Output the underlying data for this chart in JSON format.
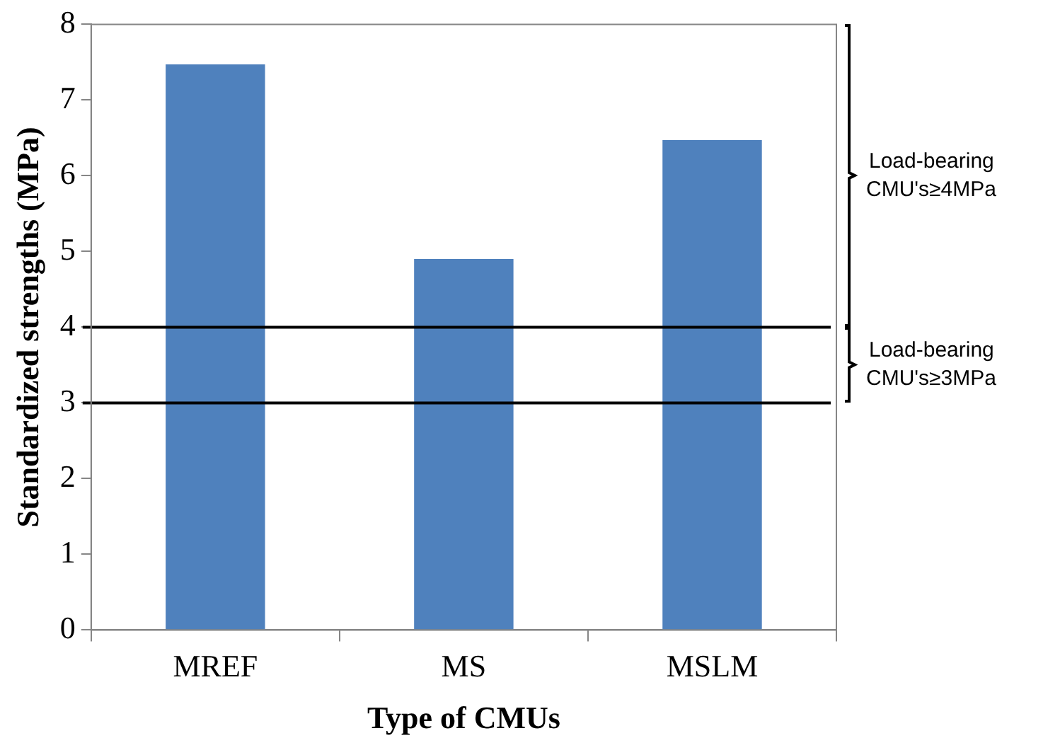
{
  "chart_data": {
    "type": "bar",
    "xlabel": "Type of CMUs",
    "ylabel": "Standardized strengths (MPa)",
    "categories": [
      "MREF",
      "MS",
      "MSLM"
    ],
    "values": [
      7.47,
      4.9,
      6.47
    ],
    "color": "#4f81bd",
    "ylim": [
      0,
      8
    ],
    "yticks": [
      0,
      1,
      2,
      3,
      4,
      5,
      6,
      7,
      8
    ],
    "grid": false,
    "legend": false,
    "ref_lines": [
      {
        "axis": "y",
        "value": 4,
        "color": "#000000"
      },
      {
        "axis": "y",
        "value": 3,
        "color": "#000000"
      }
    ],
    "annotations": [
      "Load-bearing CMU's≥4MPa",
      "Load-bearing CMU's≥3MPa"
    ]
  }
}
